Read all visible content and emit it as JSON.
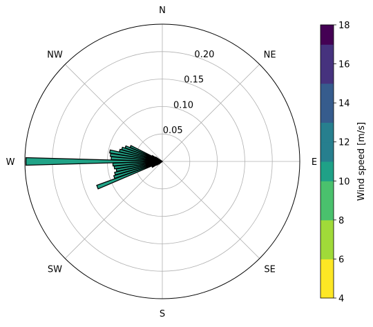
{
  "chart_data": {
    "type": "bar",
    "subtype": "polar-windrose",
    "directions": [
      "N",
      "NE",
      "E",
      "SE",
      "S",
      "SW",
      "W",
      "NW"
    ],
    "radial_ticks": [
      "0.05",
      "0.10",
      "0.15",
      "0.20"
    ],
    "radial_tick_values": [
      0.05,
      0.1,
      0.15,
      0.2
    ],
    "rlim": [
      0,
      0.25
    ],
    "grid": true,
    "bar_color": "#21a387",
    "bar_edge_color": "#000000",
    "bars": [
      {
        "direction_deg": 180.0,
        "value": 0.248
      },
      {
        "direction_deg": 183.6,
        "value": 0.09
      },
      {
        "direction_deg": 187.2,
        "value": 0.088
      },
      {
        "direction_deg": 190.8,
        "value": 0.085
      },
      {
        "direction_deg": 194.4,
        "value": 0.089
      },
      {
        "direction_deg": 198.0,
        "value": 0.092
      },
      {
        "direction_deg": 201.6,
        "value": 0.127
      },
      {
        "direction_deg": 176.4,
        "value": 0.093
      },
      {
        "direction_deg": 172.8,
        "value": 0.095
      },
      {
        "direction_deg": 169.2,
        "value": 0.097
      },
      {
        "direction_deg": 165.6,
        "value": 0.08
      },
      {
        "direction_deg": 162.0,
        "value": 0.077
      },
      {
        "direction_deg": 158.4,
        "value": 0.072
      },
      {
        "direction_deg": 154.8,
        "value": 0.064
      },
      {
        "direction_deg": 151.2,
        "value": 0.021
      },
      {
        "direction_deg": 147.6,
        "value": 0.014
      },
      {
        "direction_deg": 205.2,
        "value": 0.018
      },
      {
        "direction_deg": 208.8,
        "value": 0.021
      },
      {
        "direction_deg": 212.4,
        "value": 0.012
      },
      {
        "direction_deg": 216.0,
        "value": 0.008
      }
    ],
    "colorbar": {
      "label": "Wind speed [m/s]",
      "ticks": [
        "4",
        "6",
        "8",
        "10",
        "12",
        "14",
        "16",
        "18"
      ],
      "bounds": [
        4,
        5,
        6,
        7,
        8,
        9,
        10,
        11,
        12,
        13,
        14,
        15,
        16,
        17,
        18
      ],
      "colors": [
        "#fde725",
        "#a0da39",
        "#4ac16d",
        "#1fa187",
        "#277f8e",
        "#365c8d",
        "#46327e",
        "#440154"
      ],
      "color_steps": [
        4,
        6,
        8,
        10,
        12,
        14,
        16,
        18
      ]
    }
  }
}
